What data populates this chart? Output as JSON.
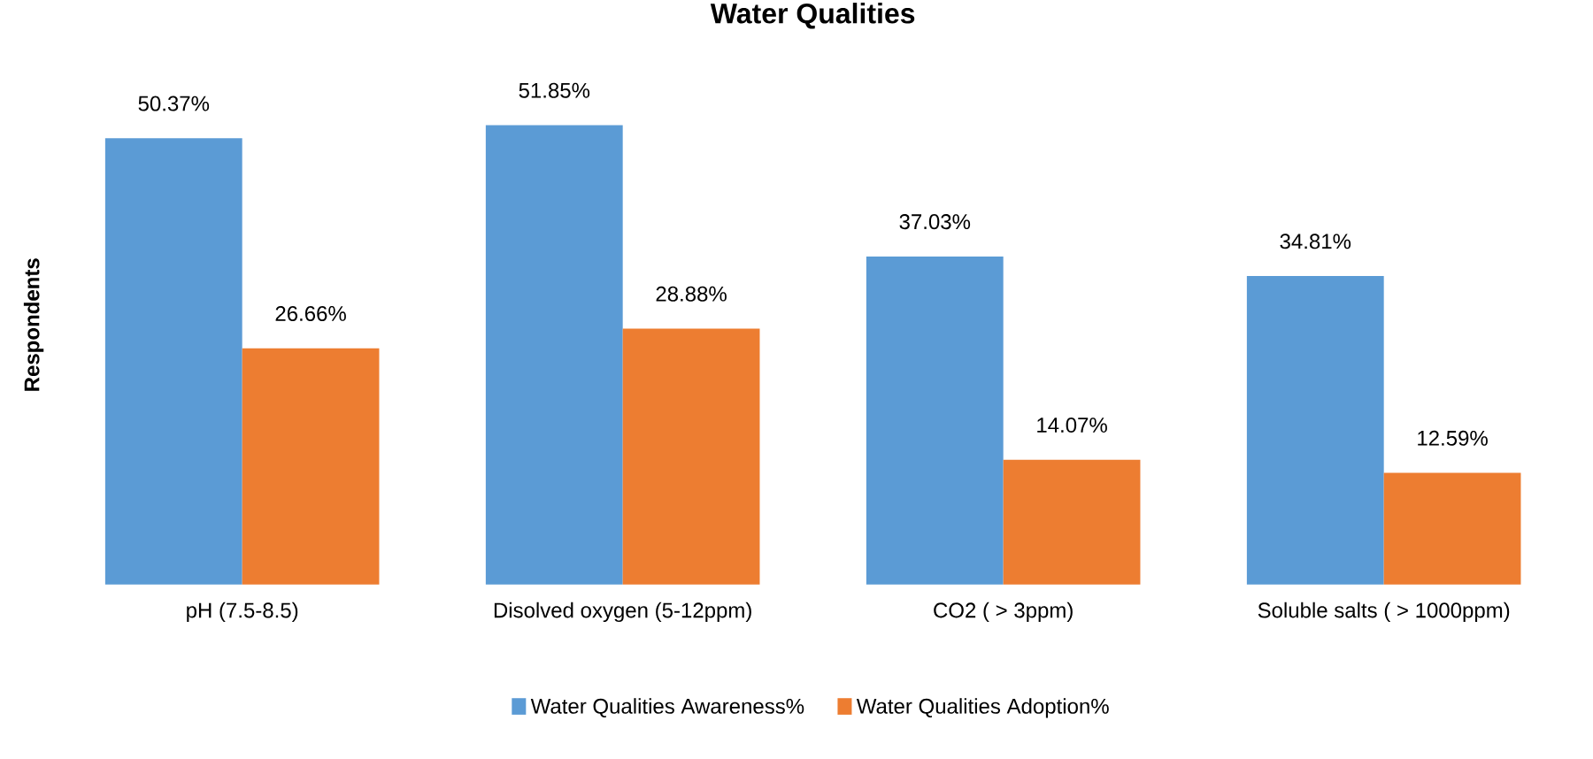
{
  "chart_data": {
    "type": "bar",
    "title": "Water Qualities",
    "ylabel": "Respondents",
    "categories": [
      "pH (7.5-8.5)",
      "Disolved oxygen (5-12ppm)",
      "CO2 ( > 3ppm)",
      "Soluble salts ( > 1000ppm)"
    ],
    "series": [
      {
        "name": "Water Qualities Awareness%",
        "color": "#5b9bd5",
        "values": [
          50.37,
          51.85,
          37.03,
          34.81
        ],
        "value_labels": [
          "50.37%",
          "51.85%",
          "37.03%",
          "34.81%"
        ]
      },
      {
        "name": "Water Qualities Adoption%",
        "color": "#ed7d31",
        "values": [
          26.66,
          28.88,
          14.07,
          12.59
        ],
        "value_labels": [
          "26.66%",
          "28.88%",
          "14.07%",
          "12.59%"
        ]
      }
    ],
    "legend": "bottom"
  }
}
